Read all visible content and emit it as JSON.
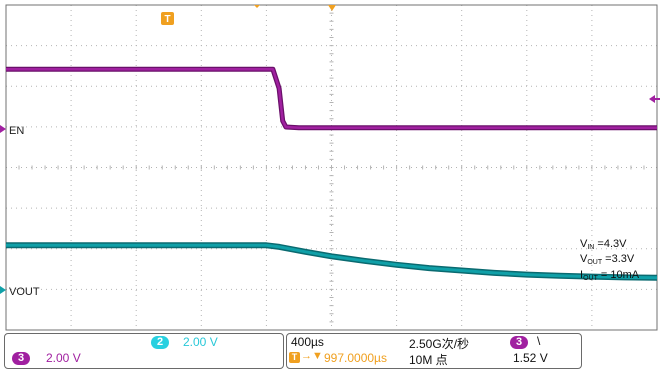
{
  "chart_data": {
    "type": "line",
    "title": "",
    "xlabel": "",
    "ylabel": "",
    "grid": true,
    "grid_divisions": {
      "x": 10,
      "y": 8
    },
    "series": [
      {
        "name": "EN",
        "channel": 3,
        "color": "#a020a0",
        "volts_per_div": "2.00 V",
        "x": [
          0,
          0.2,
          0.41,
          0.4195,
          0.425,
          0.43,
          0.45,
          0.6,
          0.8,
          1.0
        ],
        "y": [
          1.47,
          1.47,
          1.47,
          1.0,
          0.2,
          0.05,
          0.03,
          0.03,
          0.03,
          0.03
        ]
      },
      {
        "name": "VOUT",
        "channel": 2,
        "color": "#10a0a8",
        "volts_per_div": "2.00 V",
        "x": [
          0,
          0.2,
          0.4,
          0.42,
          0.46,
          0.5,
          0.55,
          0.6,
          0.65,
          0.7,
          0.75,
          0.8,
          0.85,
          0.9,
          0.95,
          1.0
        ],
        "y": [
          1.1,
          1.1,
          1.1,
          1.06,
          0.94,
          0.83,
          0.72,
          0.62,
          0.54,
          0.48,
          0.42,
          0.38,
          0.35,
          0.33,
          0.31,
          0.3
        ]
      }
    ]
  },
  "markers": {
    "trigger_label": "T",
    "en_label": "EN",
    "vout_label": "VOUT"
  },
  "annotation": {
    "vin": {
      "main": "V",
      "sub": "IN",
      "value": " =4.3V"
    },
    "vout": {
      "main": "V",
      "sub": "OUT",
      "value": " =3.3V"
    },
    "iout": {
      "main": "I",
      "sub": "OUT",
      "value": " = 10mA"
    }
  },
  "status": {
    "ch3_badge": "3",
    "ch3_scale": "2.00 V",
    "ch2_badge": "2",
    "ch2_scale": "2.00 V",
    "timebase": "400µs",
    "trigger_icon": "T",
    "trigger_offset": "997.0000µs",
    "sample_rate": "2.50G次/秒",
    "record_length": "10M 点",
    "trig_badge": "3",
    "trig_slope": "\\",
    "trig_level": "1.52 V"
  },
  "colors": {
    "ch3": "#a020a0",
    "ch2": "#10a0a8",
    "ch2_badge_bg": "#28d0e0",
    "trigger": "#f0a020",
    "grid": "#b4b4b4",
    "frame": "#707070"
  }
}
